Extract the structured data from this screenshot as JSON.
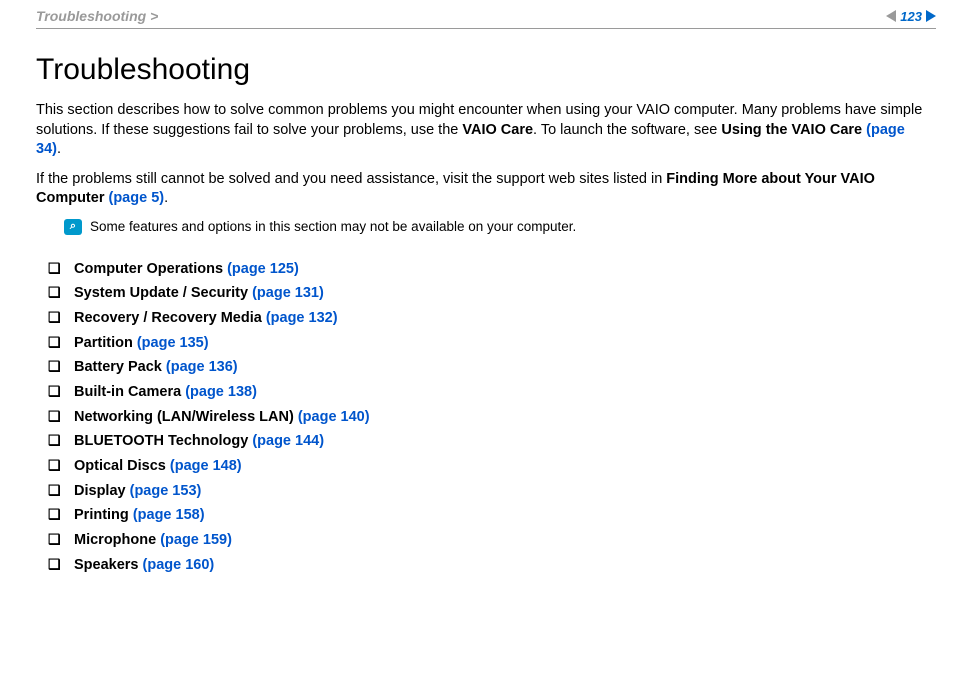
{
  "header": {
    "breadcrumb": "Troubleshooting >",
    "page_number": "123"
  },
  "title": "Troubleshooting",
  "intro": {
    "p1_a": "This section describes how to solve common problems you might encounter when using your VAIO computer. Many problems have simple solutions. If these suggestions fail to solve your problems, use the ",
    "p1_bold1": "VAIO Care",
    "p1_b": ". To launch the software, see ",
    "p1_bold2": "Using the VAIO Care ",
    "p1_link": "(page 34)",
    "p1_c": ".",
    "p2_a": "If the problems still cannot be solved and you need assistance, visit the support web sites listed in ",
    "p2_bold": "Finding More about Your VAIO Computer ",
    "p2_link": "(page 5)",
    "p2_b": "."
  },
  "note": {
    "icon_glyph": "⌕",
    "text": "Some features and options in this section may not be available on your computer."
  },
  "toc": [
    {
      "label": "Computer Operations ",
      "page": "(page 125)"
    },
    {
      "label": "System Update / Security ",
      "page": "(page 131)"
    },
    {
      "label": "Recovery / Recovery Media ",
      "page": "(page 132)"
    },
    {
      "label": "Partition ",
      "page": "(page 135)"
    },
    {
      "label": "Battery Pack ",
      "page": "(page 136)"
    },
    {
      "label": "Built-in Camera ",
      "page": "(page 138)"
    },
    {
      "label": "Networking (LAN/Wireless LAN) ",
      "page": "(page 140)"
    },
    {
      "label": "BLUETOOTH Technology ",
      "page": "(page 144)"
    },
    {
      "label": "Optical Discs ",
      "page": "(page 148)"
    },
    {
      "label": "Display ",
      "page": "(page 153)"
    },
    {
      "label": "Printing ",
      "page": "(page 158)"
    },
    {
      "label": "Microphone ",
      "page": "(page 159)"
    },
    {
      "label": "Speakers ",
      "page": "(page 160)"
    }
  ],
  "colors": {
    "link": "#0055cc",
    "muted": "#9a9a9a",
    "accent": "#0068c9",
    "note_bg": "#0099cc",
    "text": "#000000",
    "bg": "#ffffff"
  }
}
